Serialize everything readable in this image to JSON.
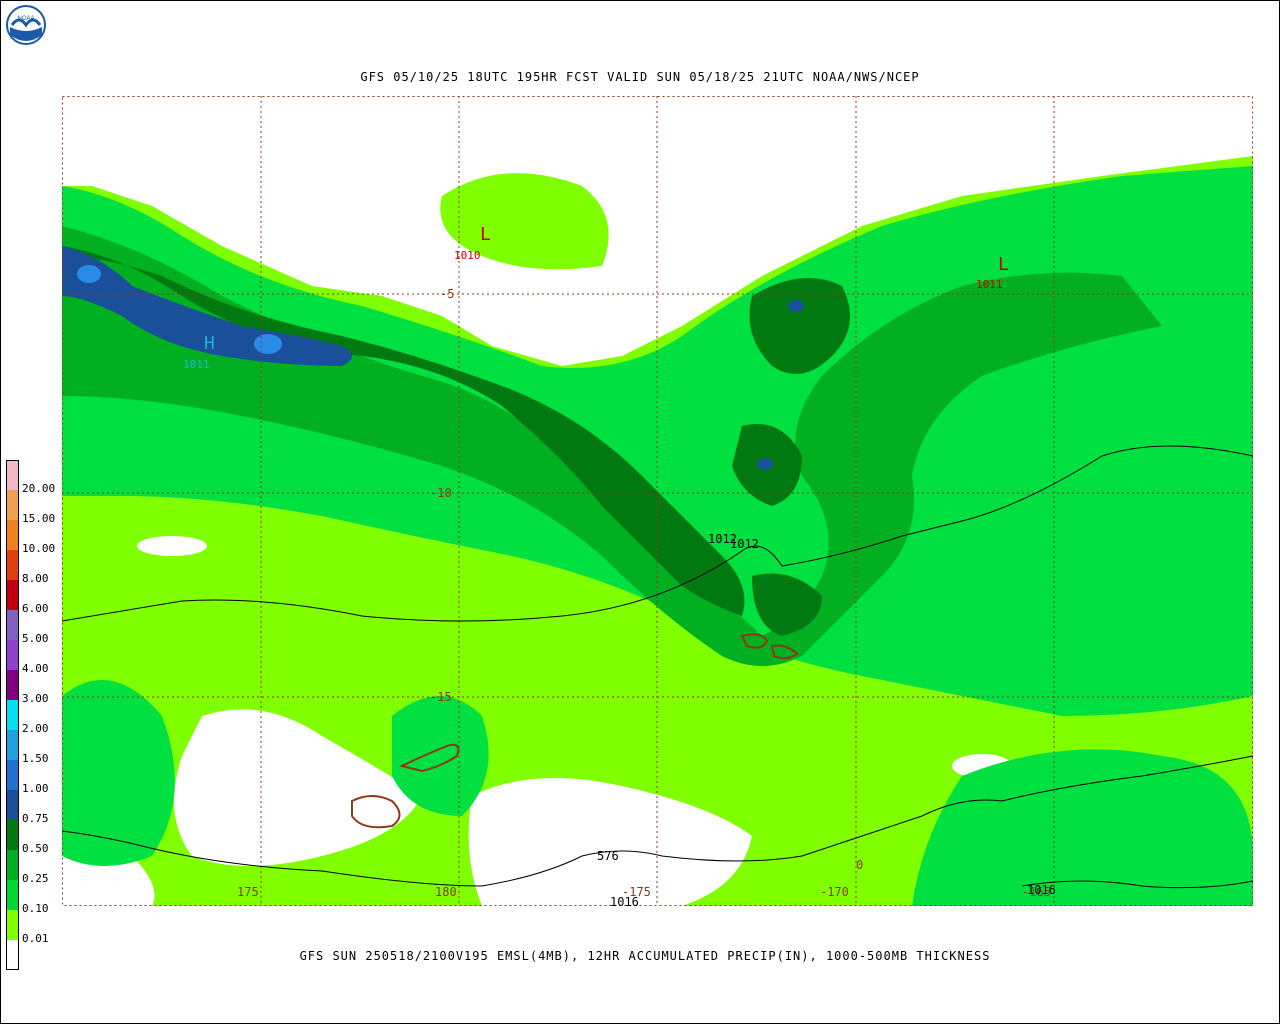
{
  "header": {
    "title": "GFS 05/10/25 18UTC 195HR FCST VALID SUN 05/18/25 21UTC NOAA/NWS/NCEP"
  },
  "footer": {
    "caption": "GFS SUN 250518/2100V195 EMSL(4MB), 12HR ACCUMULATED PRECIP(IN), 1000-500MB THICKNESS"
  },
  "logo": {
    "text": "NOAA",
    "ring_color": "#1a5aa8",
    "icon": "noaa-logo"
  },
  "legend": {
    "levels": [
      {
        "label": "20.00",
        "color": "#f2b8c6"
      },
      {
        "label": "15.00",
        "color": "#f0a050"
      },
      {
        "label": "10.00",
        "color": "#f08020"
      },
      {
        "label": "8.00",
        "color": "#e04010"
      },
      {
        "label": "6.00",
        "color": "#c00010"
      },
      {
        "label": "5.00",
        "color": "#8060c0"
      },
      {
        "label": "4.00",
        "color": "#9040d0"
      },
      {
        "label": "3.00",
        "color": "#800080"
      },
      {
        "label": "2.00",
        "color": "#00e0f0"
      },
      {
        "label": "1.50",
        "color": "#20a0e0"
      },
      {
        "label": "1.00",
        "color": "#2070d0"
      },
      {
        "label": "0.75",
        "color": "#1a4f9a"
      },
      {
        "label": "0.50",
        "color": "#007a10"
      },
      {
        "label": "0.25",
        "color": "#00b020"
      },
      {
        "label": "0.10",
        "color": "#00d830"
      },
      {
        "label": "0.01",
        "color": "#80ff00"
      },
      {
        "label": "",
        "color": "#ffffff"
      }
    ]
  },
  "map": {
    "precip_colors": {
      "light": "#80ff00",
      "mid": "#00e040",
      "heavy": "#00b020",
      "dark": "#007a10",
      "blue": "#1a4f9a",
      "lightblue": "#2a8ae8"
    },
    "grid_color": "#8b3a1a",
    "longitude_labels": [
      "175",
      "180",
      "-175",
      "-170",
      "-165"
    ],
    "latitude_labels": [
      "-5",
      "-10",
      "-15"
    ],
    "pressure_centers": [
      {
        "type": "L",
        "value": "1010",
        "color": "#cc0000"
      },
      {
        "type": "L",
        "value": "1011",
        "color": "#cc0000"
      },
      {
        "type": "H",
        "value": "1011",
        "color": "#20b0e0"
      }
    ],
    "isobar_labels": [
      "1012",
      "1012",
      "1016",
      "1016"
    ],
    "thickness_labels": [
      "576"
    ],
    "marker_labels": [
      "0"
    ]
  }
}
